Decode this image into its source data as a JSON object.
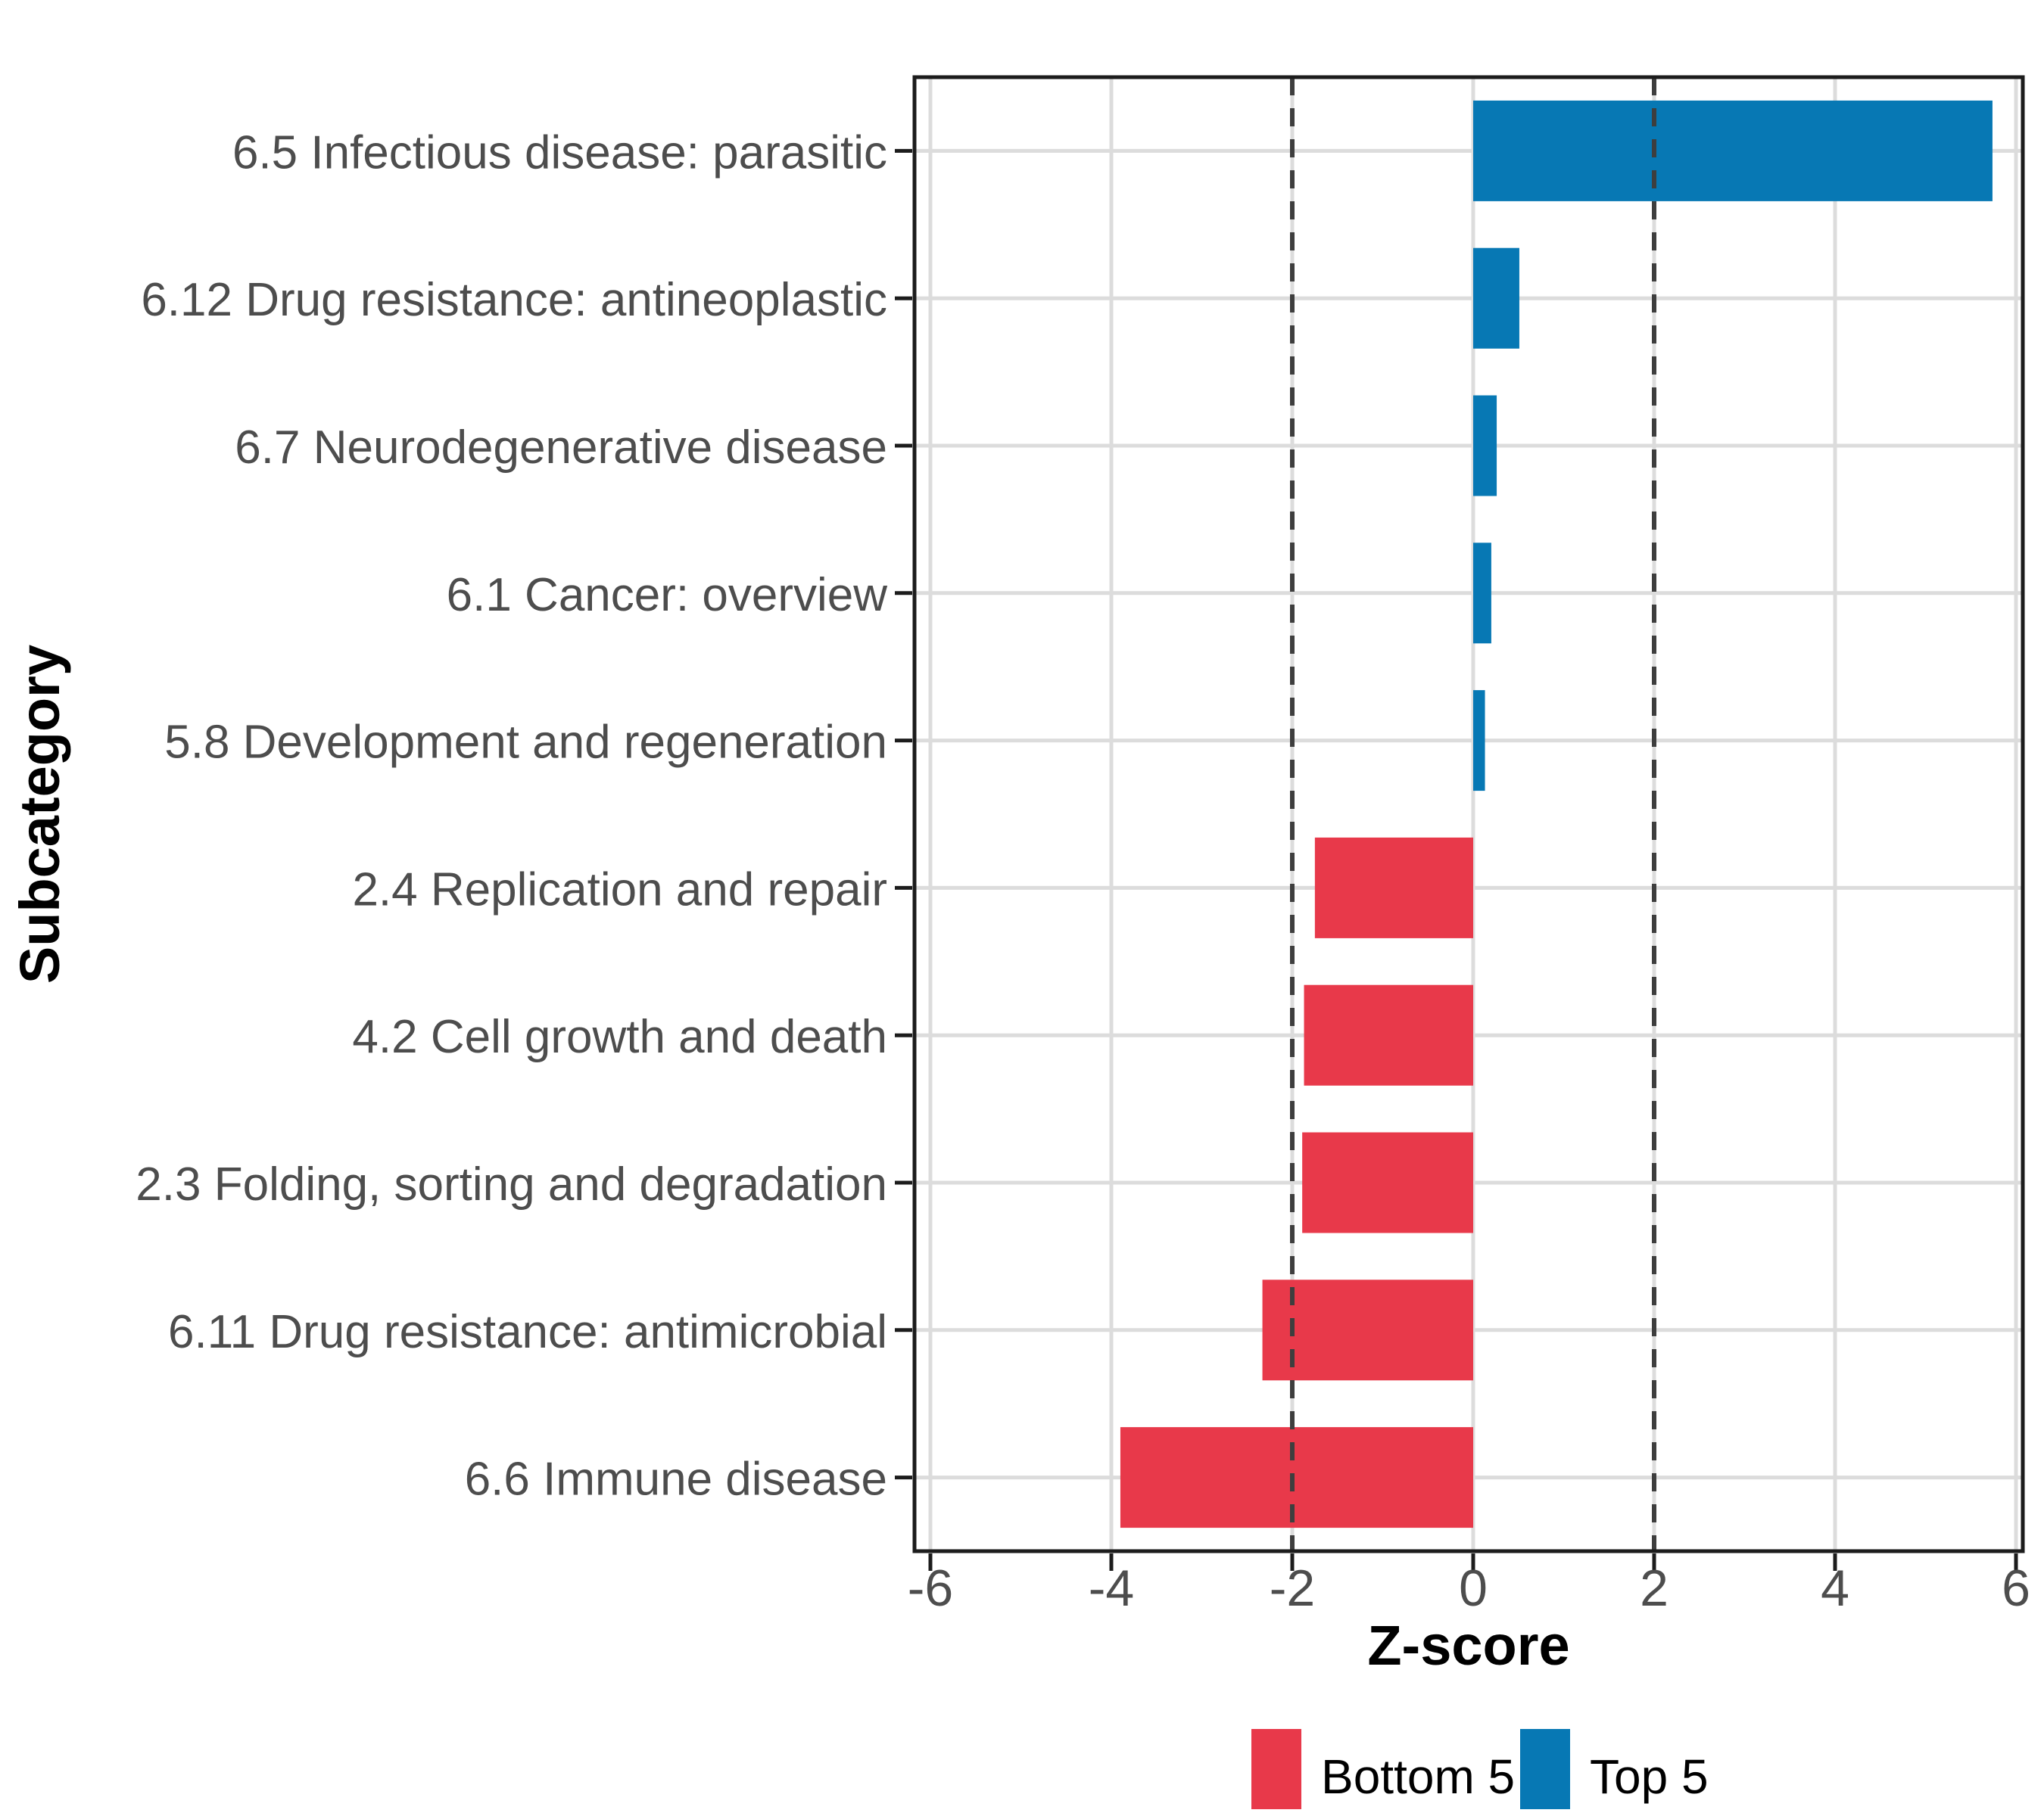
{
  "chart_data": {
    "type": "bar",
    "orientation": "horizontal",
    "title": "",
    "xlabel": "Z-score",
    "ylabel": "Subcategory",
    "xlim": [
      -6.2,
      6.1
    ],
    "xticks": [
      -6,
      -4,
      -2,
      0,
      2,
      4,
      6
    ],
    "xtick_labels": [
      "-6",
      "-4",
      "-2",
      "0",
      "2",
      "4",
      "6"
    ],
    "grid": "major-only",
    "categories": [
      "6.5 Infectious disease: parasitic",
      "6.12 Drug resistance: antineoplastic",
      "6.7 Neurodegenerative disease",
      "6.1 Cancer: overview",
      "5.8 Development and regeneration",
      "2.4 Replication and repair",
      "4.2 Cell growth and death",
      "2.3 Folding, sorting and degradation",
      "6.11 Drug resistance: antimicrobial",
      "6.6 Immune disease"
    ],
    "values": [
      5.74,
      0.51,
      0.26,
      0.2,
      0.13,
      -1.75,
      -1.87,
      -1.89,
      -2.33,
      -3.9
    ],
    "groups": [
      "Top 5",
      "Top 5",
      "Top 5",
      "Top 5",
      "Top 5",
      "Bottom 5",
      "Bottom 5",
      "Bottom 5",
      "Bottom 5",
      "Bottom 5"
    ],
    "reference_lines": {
      "style": "dashed",
      "x": [
        -2,
        2
      ]
    },
    "legend": {
      "position": "bottom",
      "entries": [
        {
          "label": "Bottom 5",
          "color": "#E8394A"
        },
        {
          "label": "Top 5",
          "color": "#0778B4"
        }
      ]
    },
    "colors": {
      "Top 5": "#0778B4",
      "Bottom 5": "#E8394A",
      "grid": "#DCDCDC",
      "reference_line": "#3E3E3E",
      "axis_text": "#4D4D4D",
      "axis_title": "#000000",
      "panel_border": "#1C1C1C",
      "background": "#FFFFFF"
    }
  }
}
